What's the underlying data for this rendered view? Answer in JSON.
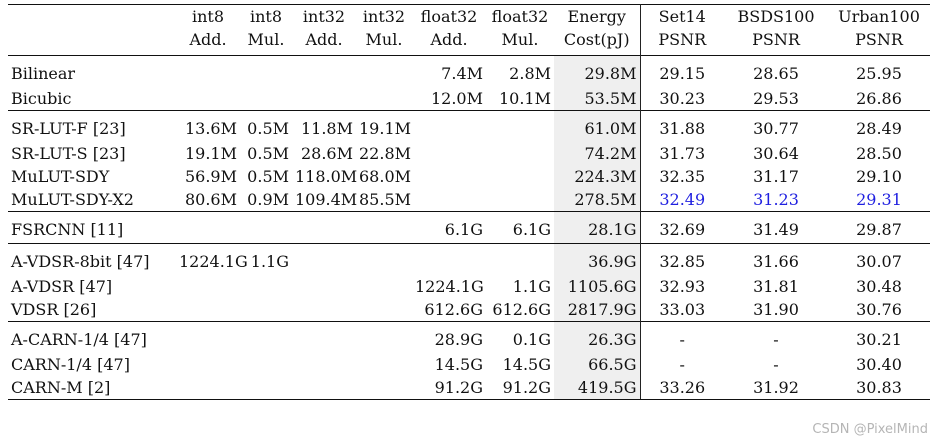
{
  "header": {
    "row1": [
      "",
      "int8",
      "int8",
      "int32",
      "int32",
      "float32",
      "float32",
      "Energy",
      "Set14",
      "BSDS100",
      "Urban100"
    ],
    "row2": [
      "",
      "Add.",
      "Mul.",
      "Add.",
      "Mul.",
      "Add.",
      "Mul.",
      "Cost(pJ)",
      "PSNR",
      "PSNR",
      "PSNR"
    ]
  },
  "groups": [
    {
      "rows": [
        {
          "method": "Bilinear",
          "i8a": "",
          "i8m": "",
          "i32a": "",
          "i32m": "",
          "f32a": "7.4M",
          "f32m": "2.8M",
          "energy": "29.8M",
          "set14": "29.15",
          "bsds": "28.65",
          "urban": "25.95"
        },
        {
          "method": "Bicubic",
          "i8a": "",
          "i8m": "",
          "i32a": "",
          "i32m": "",
          "f32a": "12.0M",
          "f32m": "10.1M",
          "energy": "53.5M",
          "set14": "30.23",
          "bsds": "29.53",
          "urban": "26.86"
        }
      ]
    },
    {
      "rows": [
        {
          "method": "SR-LUT-F [23]",
          "i8a": "13.6M",
          "i8m": "0.5M",
          "i32a": "11.8M",
          "i32m": "19.1M",
          "f32a": "",
          "f32m": "",
          "energy": "61.0M",
          "set14": "31.88",
          "bsds": "30.77",
          "urban": "28.49"
        },
        {
          "method": "SR-LUT-S [23]",
          "i8a": "19.1M",
          "i8m": "0.5M",
          "i32a": "28.6M",
          "i32m": "22.8M",
          "f32a": "",
          "f32m": "",
          "energy": "74.2M",
          "set14": "31.73",
          "bsds": "30.64",
          "urban": "28.50"
        },
        {
          "method": "MuLUT-SDY",
          "i8a": "56.9M",
          "i8m": "0.5M",
          "i32a": "118.0M",
          "i32m": "68.0M",
          "f32a": "",
          "f32m": "",
          "energy": "224.3M",
          "set14": "32.35",
          "bsds": "31.17",
          "urban": "29.10"
        },
        {
          "method": "MuLUT-SDY-X2",
          "i8a": "80.6M",
          "i8m": "0.9M",
          "i32a": "109.4M",
          "i32m": "85.5M",
          "f32a": "",
          "f32m": "",
          "energy": "278.5M",
          "set14": "32.49",
          "bsds": "31.23",
          "urban": "29.31",
          "highlight": true
        }
      ]
    },
    {
      "rows": [
        {
          "method": "FSRCNN [11]",
          "i8a": "",
          "i8m": "",
          "i32a": "",
          "i32m": "",
          "f32a": "6.1G",
          "f32m": "6.1G",
          "energy": "28.1G",
          "set14": "32.69",
          "bsds": "31.49",
          "urban": "29.87"
        }
      ]
    },
    {
      "rows": [
        {
          "method": "A-VDSR-8bit [47]",
          "i8a": "1224.1G",
          "i8m": "1.1G",
          "i32a": "",
          "i32m": "",
          "f32a": "",
          "f32m": "",
          "energy": "36.9G",
          "set14": "32.85",
          "bsds": "31.66",
          "urban": "30.07"
        },
        {
          "method": "A-VDSR [47]",
          "i8a": "",
          "i8m": "",
          "i32a": "",
          "i32m": "",
          "f32a": "1224.1G",
          "f32m": "1.1G",
          "energy": "1105.6G",
          "set14": "32.93",
          "bsds": "31.81",
          "urban": "30.48"
        },
        {
          "method": "VDSR [26]",
          "i8a": "",
          "i8m": "",
          "i32a": "",
          "i32m": "",
          "f32a": "612.6G",
          "f32m": "612.6G",
          "energy": "2817.9G",
          "set14": "33.03",
          "bsds": "31.90",
          "urban": "30.76"
        }
      ]
    },
    {
      "rows": [
        {
          "method": "A-CARN-1/4 [47]",
          "i8a": "",
          "i8m": "",
          "i32a": "",
          "i32m": "",
          "f32a": "28.9G",
          "f32m": "0.1G",
          "energy": "26.3G",
          "set14": "-",
          "bsds": "-",
          "urban": "30.21"
        },
        {
          "method": "CARN-1/4 [47]",
          "i8a": "",
          "i8m": "",
          "i32a": "",
          "i32m": "",
          "f32a": "14.5G",
          "f32m": "14.5G",
          "energy": "66.5G",
          "set14": "-",
          "bsds": "-",
          "urban": "30.40"
        },
        {
          "method": "CARN-M [2]",
          "i8a": "",
          "i8m": "",
          "i32a": "",
          "i32m": "",
          "f32a": "91.2G",
          "f32m": "91.2G",
          "energy": "419.5G",
          "set14": "33.26",
          "bsds": "31.92",
          "urban": "30.83"
        }
      ]
    }
  ],
  "highlight_color": "#1f1fe0",
  "watermark": "CSDN @PixelMind"
}
